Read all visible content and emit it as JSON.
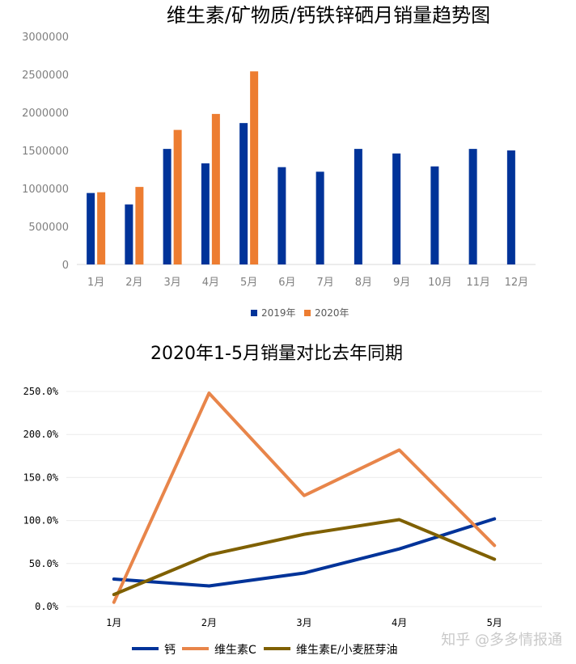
{
  "chart_data": [
    {
      "type": "bar",
      "title": "维生素/矿物质/钙铁锌硒月销量趋势图",
      "categories": [
        "1月",
        "2月",
        "3月",
        "4月",
        "5月",
        "6月",
        "7月",
        "8月",
        "9月",
        "10月",
        "11月",
        "12月"
      ],
      "y_ticks": [
        "0",
        "500000",
        "1000000",
        "1500000",
        "2000000",
        "2500000",
        "3000000"
      ],
      "ylim": [
        0,
        3000000
      ],
      "series": [
        {
          "name": "2019年",
          "color": "#003399",
          "values": [
            940000,
            790000,
            1520000,
            1330000,
            1860000,
            1280000,
            1220000,
            1520000,
            1460000,
            1290000,
            1520000,
            1500000
          ]
        },
        {
          "name": "2020年",
          "color": "#ED7D31",
          "values": [
            950000,
            1020000,
            1770000,
            1980000,
            2540000,
            null,
            null,
            null,
            null,
            null,
            null,
            null
          ]
        }
      ],
      "legend": "bottom",
      "grid": false
    },
    {
      "type": "line",
      "title": "2020年1-5月销量对比去年同期",
      "categories": [
        "1月",
        "2月",
        "3月",
        "4月",
        "5月"
      ],
      "y_ticks": [
        "0.0%",
        "50.0%",
        "100.0%",
        "150.0%",
        "200.0%",
        "250.0%"
      ],
      "ylim": [
        0,
        2.5
      ],
      "series": [
        {
          "name": "钙",
          "color": "#003399",
          "values": [
            0.32,
            0.24,
            0.39,
            0.67,
            1.02
          ]
        },
        {
          "name": "维生素C",
          "color": "#E8854A",
          "values": [
            0.05,
            2.48,
            1.29,
            1.82,
            0.71
          ]
        },
        {
          "name": "维生素E/小麦胚芽油",
          "color": "#7F6000",
          "values": [
            0.14,
            0.6,
            0.84,
            1.01,
            0.55
          ]
        }
      ],
      "legend": "bottom",
      "grid": true
    }
  ],
  "watermark": "知乎 @多多情报通"
}
